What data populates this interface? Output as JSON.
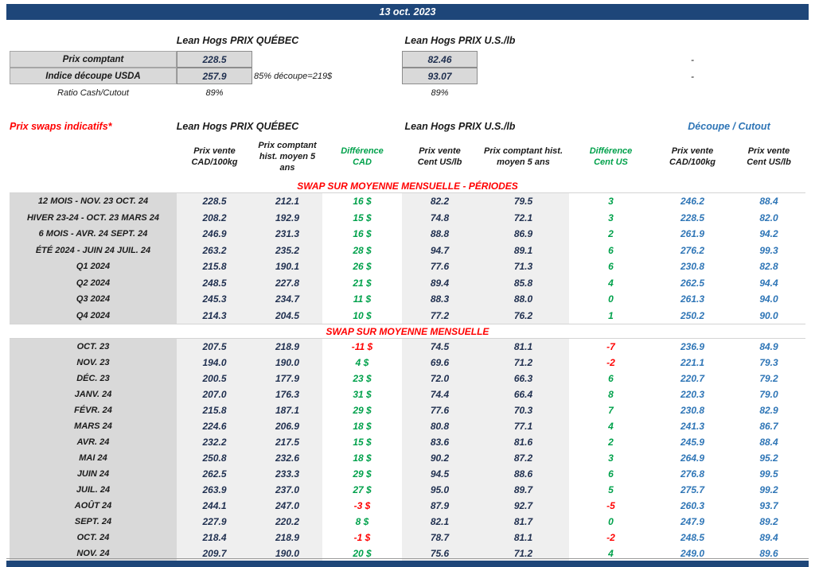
{
  "page": {
    "date": "13 oct. 2023"
  },
  "colors": {
    "navy_bar": "#1e4679",
    "label_bg": "#d9d9d9",
    "value_bg": "#efefef",
    "accent_red": "#ff0000",
    "accent_green": "#00a14b",
    "accent_blue": "#2e75b6",
    "number_text": "#203050"
  },
  "spot": {
    "qc_title": "Lean Hogs PRIX QUÉBEC",
    "us_title": "Lean Hogs PRIX U.S./lb",
    "rows": [
      {
        "label": "Prix comptant",
        "qc": "228.5",
        "note": "",
        "us": "82.46",
        "dash": "-"
      },
      {
        "label": "Indice découpe USDA",
        "qc": "257.9",
        "note": "85% découpe=219$",
        "us": "93.07",
        "dash": "-"
      },
      {
        "label": "Ratio Cash/Cutout",
        "qc": "89%",
        "note": "",
        "us": "89%",
        "dash": ""
      }
    ]
  },
  "swaps": {
    "title": "Prix swaps indicatifs*",
    "qc_title": "Lean Hogs PRIX QUÉBEC",
    "us_title": "Lean Hogs PRIX U.S./lb",
    "cutout_title": "Découpe / Cutout",
    "col_headers": [
      "Prix vente\nCAD/100kg",
      "Prix comptant\nhist. moyen 5\nans",
      "Différence\nCAD",
      "Prix vente\nCent US/lb",
      "Prix comptant hist.\nmoyen 5 ans",
      "Différence\nCent US",
      "Prix vente\nCAD/100kg",
      "Prix vente\nCent US/lb"
    ],
    "periods_banner": "SWAP SUR MOYENNE MENSUELLE - PÉRIODES",
    "monthly_banner": "SWAP SUR MOYENNE MENSUELLE",
    "periods_rows": [
      [
        "12 MOIS - NOV. 23 OCT. 24",
        "228.5",
        "212.1",
        "16 $",
        "82.2",
        "79.5",
        "3",
        "246.2",
        "88.4"
      ],
      [
        "HIVER 23-24 -  OCT. 23 MARS 24",
        "208.2",
        "192.9",
        "15 $",
        "74.8",
        "72.1",
        "3",
        "228.5",
        "82.0"
      ],
      [
        "6 MOIS -  AVR. 24 SEPT. 24",
        "246.9",
        "231.3",
        "16 $",
        "88.8",
        "86.9",
        "2",
        "261.9",
        "94.2"
      ],
      [
        "ÉTÉ 2024 - JUIN 24 JUIL. 24",
        "263.2",
        "235.2",
        "28 $",
        "94.7",
        "89.1",
        "6",
        "276.2",
        "99.3"
      ],
      [
        "Q1 2024",
        "215.8",
        "190.1",
        "26 $",
        "77.6",
        "71.3",
        "6",
        "230.8",
        "82.8"
      ],
      [
        "Q2 2024",
        "248.5",
        "227.8",
        "21 $",
        "89.4",
        "85.8",
        "4",
        "262.5",
        "94.4"
      ],
      [
        "Q3 2024",
        "245.3",
        "234.7",
        "11 $",
        "88.3",
        "88.0",
        "0",
        "261.3",
        "94.0"
      ],
      [
        "Q4 2024",
        "214.3",
        "204.5",
        "10 $",
        "77.2",
        "76.2",
        "1",
        "250.2",
        "90.0"
      ]
    ],
    "monthly_rows": [
      [
        "OCT. 23",
        "207.5",
        "218.9",
        "-11 $",
        "74.5",
        "81.1",
        "-7",
        "236.9",
        "84.9"
      ],
      [
        "NOV. 23",
        "194.0",
        "190.0",
        "4 $",
        "69.6",
        "71.2",
        "-2",
        "221.1",
        "79.3"
      ],
      [
        "DÉC. 23",
        "200.5",
        "177.9",
        "23 $",
        "72.0",
        "66.3",
        "6",
        "220.7",
        "79.2"
      ],
      [
        "JANV. 24",
        "207.0",
        "176.3",
        "31 $",
        "74.4",
        "66.4",
        "8",
        "220.3",
        "79.0"
      ],
      [
        "FÉVR. 24",
        "215.8",
        "187.1",
        "29 $",
        "77.6",
        "70.3",
        "7",
        "230.8",
        "82.9"
      ],
      [
        "MARS 24",
        "224.6",
        "206.9",
        "18 $",
        "80.8",
        "77.1",
        "4",
        "241.3",
        "86.7"
      ],
      [
        "AVR. 24",
        "232.2",
        "217.5",
        "15 $",
        "83.6",
        "81.6",
        "2",
        "245.9",
        "88.4"
      ],
      [
        "MAI 24",
        "250.8",
        "232.6",
        "18 $",
        "90.2",
        "87.2",
        "3",
        "264.9",
        "95.2"
      ],
      [
        "JUIN 24",
        "262.5",
        "233.3",
        "29 $",
        "94.5",
        "88.6",
        "6",
        "276.8",
        "99.5"
      ],
      [
        "JUIL. 24",
        "263.9",
        "237.0",
        "27 $",
        "95.0",
        "89.7",
        "5",
        "275.7",
        "99.2"
      ],
      [
        "AOÛT 24",
        "244.1",
        "247.0",
        "-3 $",
        "87.9",
        "92.7",
        "-5",
        "260.3",
        "93.7"
      ],
      [
        "SEPT. 24",
        "227.9",
        "220.2",
        "8 $",
        "82.1",
        "81.7",
        "0",
        "247.9",
        "89.2"
      ],
      [
        "OCT. 24",
        "218.4",
        "218.9",
        "-1 $",
        "78.7",
        "81.1",
        "-2",
        "248.5",
        "89.4"
      ],
      [
        "NOV. 24",
        "209.7",
        "190.0",
        "20 $",
        "75.6",
        "71.2",
        "4",
        "249.0",
        "89.6"
      ]
    ]
  }
}
